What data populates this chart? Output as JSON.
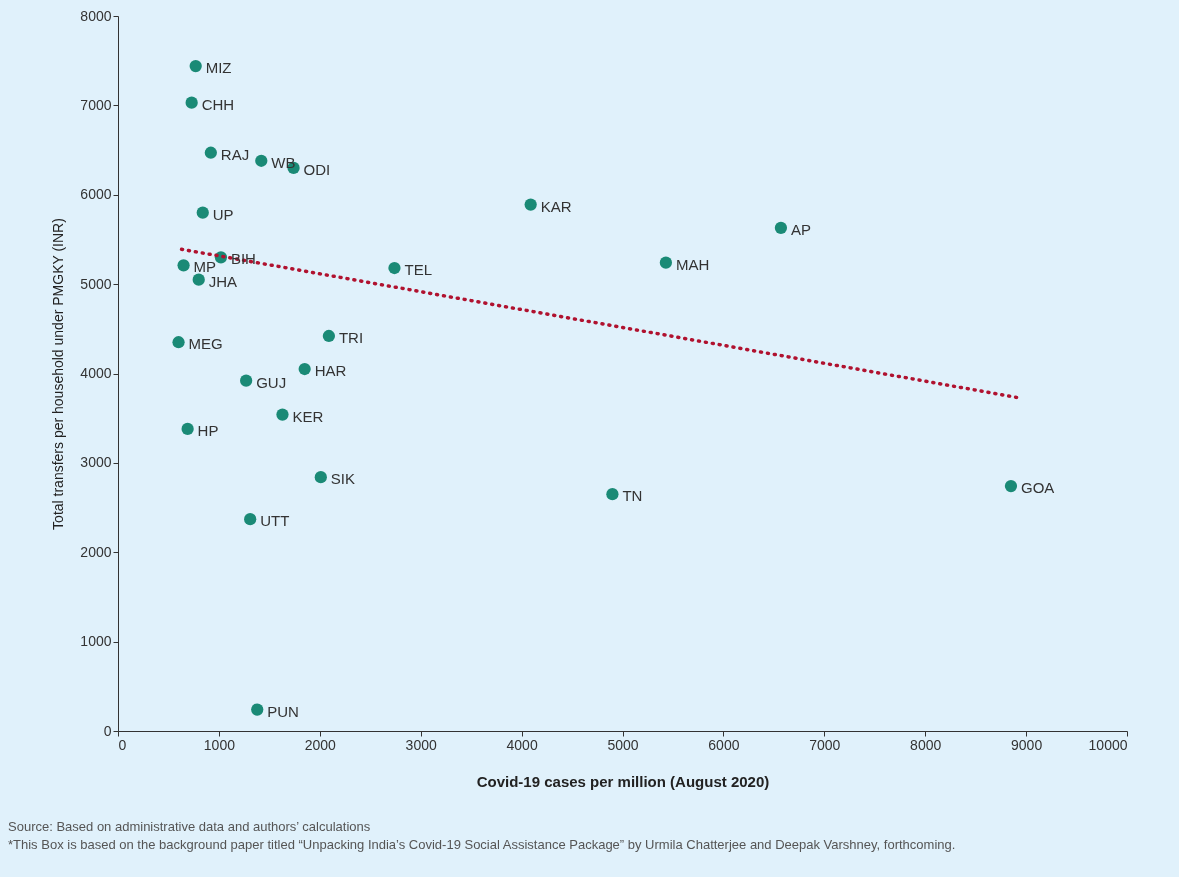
{
  "chart_data": {
    "type": "scatter",
    "xlabel": "Covid-19 cases per million (August 2020)",
    "ylabel": "Total transfers per household under PMGKY (INR)",
    "xlim": [
      0,
      10000
    ],
    "xticks": [
      0,
      1000,
      2000,
      3000,
      4000,
      5000,
      6000,
      7000,
      8000,
      9000,
      10000
    ],
    "ylim": [
      0,
      8000
    ],
    "yticks": [
      0,
      1000,
      2000,
      3000,
      4000,
      5000,
      6000,
      7000,
      8000
    ],
    "grid": false,
    "marker": "circle",
    "series": [
      {
        "color": "#1a8a76",
        "x": [
          770,
          730,
          920,
          1420,
          1740,
          840,
          4090,
          6570,
          1020,
          650,
          2740,
          5430,
          800,
          600,
          2090,
          1850,
          1270,
          1630,
          690,
          2010,
          4900,
          8850,
          1310,
          1380
        ],
        "values": [
          7440,
          7030,
          6470,
          6380,
          6300,
          5800,
          5890,
          5630,
          5300,
          5210,
          5180,
          5240,
          5050,
          4350,
          4420,
          4050,
          3920,
          3540,
          3380,
          2840,
          2650,
          2740,
          2370,
          240
        ]
      },
      {
        "type": "line",
        "marker": "none",
        "color": "#b0122f",
        "line_style": "dotted",
        "x": [
          630,
          8920
        ],
        "values": [
          5390,
          3730
        ]
      }
    ],
    "annotations": [
      {
        "text": "MIZ",
        "x": 770,
        "y": 7440
      },
      {
        "text": "CHH",
        "x": 730,
        "y": 7030
      },
      {
        "text": "RAJ",
        "x": 920,
        "y": 6470
      },
      {
        "text": "WB",
        "x": 1420,
        "y": 6380
      },
      {
        "text": "ODI",
        "x": 1740,
        "y": 6300
      },
      {
        "text": "UP",
        "x": 840,
        "y": 5800
      },
      {
        "text": "KAR",
        "x": 4090,
        "y": 5890
      },
      {
        "text": "AP",
        "x": 6570,
        "y": 5630
      },
      {
        "text": "BIH",
        "x": 1020,
        "y": 5300
      },
      {
        "text": "MP",
        "x": 650,
        "y": 5210
      },
      {
        "text": "TEL",
        "x": 2740,
        "y": 5180
      },
      {
        "text": "MAH",
        "x": 5430,
        "y": 5240
      },
      {
        "text": "JHA",
        "x": 800,
        "y": 5050
      },
      {
        "text": "MEG",
        "x": 600,
        "y": 4350
      },
      {
        "text": "TRI",
        "x": 2090,
        "y": 4420
      },
      {
        "text": "HAR",
        "x": 1850,
        "y": 4050
      },
      {
        "text": "GUJ",
        "x": 1270,
        "y": 3920
      },
      {
        "text": "KER",
        "x": 1630,
        "y": 3540
      },
      {
        "text": "HP",
        "x": 690,
        "y": 3380
      },
      {
        "text": "SIK",
        "x": 2010,
        "y": 2840
      },
      {
        "text": "TN",
        "x": 4900,
        "y": 2650
      },
      {
        "text": "GOA",
        "x": 8850,
        "y": 2740
      },
      {
        "text": "UTT",
        "x": 1310,
        "y": 2370
      },
      {
        "text": "PUN",
        "x": 1380,
        "y": 240
      },
      "Source: Based on administrative data and authors’ calculations",
      "*This Box is based on the background paper titled “Unpacking India’s Covid-19 Social Assistance Package” by Urmila Chatterjee and Deepak Varshney, forthcoming."
    ]
  }
}
